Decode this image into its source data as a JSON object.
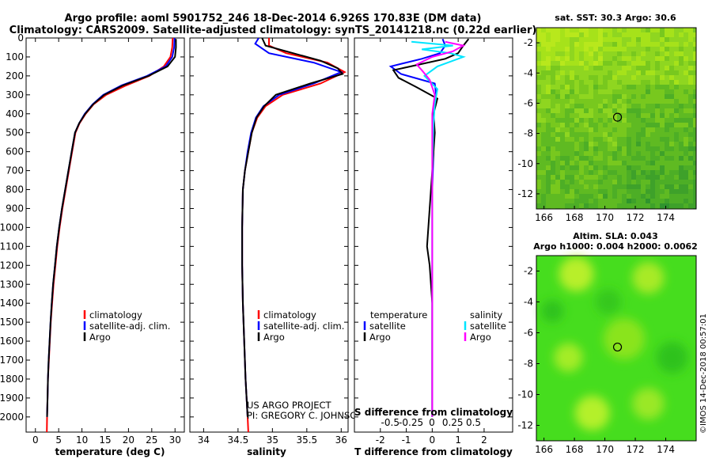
{
  "header": {
    "line1": "Argo profile: aoml 5901752_246 18-Dec-2014 6.926S 170.83E (DM data)",
    "line2": "Climatology: CARS2009. Satellite-adjusted climatology: synTS_20141218.nc (0.22d earlier)"
  },
  "colors": {
    "climatology": "#ff0000",
    "satellite": "#0000ff",
    "argo": "#000000",
    "sal_satellite": "#00e5ff",
    "sal_argo": "#ff00ff"
  },
  "chart_data": [
    {
      "type": "line",
      "name": "temperature",
      "xlabel": "temperature (deg C)",
      "ylabel": "",
      "xlim": [
        -2,
        32
      ],
      "ylim": [
        2080,
        0
      ],
      "xticks": [
        0,
        5,
        10,
        15,
        20,
        25,
        30
      ],
      "xtick_labels": [
        "0",
        "5",
        "10",
        "15",
        "20",
        "25",
        "30"
      ],
      "yticks": [
        0,
        100,
        200,
        300,
        400,
        500,
        600,
        700,
        800,
        900,
        1000,
        1100,
        1200,
        1300,
        1400,
        1500,
        1600,
        1700,
        1800,
        1900,
        2000
      ],
      "ytick_labels": [
        "0",
        "100",
        "200",
        "300",
        "400",
        "500",
        "600",
        "700",
        "800",
        "900",
        "1000",
        "1100",
        "1200",
        "1300",
        "1400",
        "1500",
        "1600",
        "1700",
        "1800",
        "1900",
        "2000"
      ],
      "legend": [
        "climatology",
        "satellite-adj. clim.",
        "Argo"
      ],
      "series": [
        {
          "name": "climatology",
          "color": "#ff0000",
          "points": [
            [
              29.5,
              0
            ],
            [
              29.4,
              50
            ],
            [
              29.0,
              100
            ],
            [
              27.6,
              150
            ],
            [
              24.5,
              200
            ],
            [
              19.5,
              250
            ],
            [
              15.2,
              300
            ],
            [
              12.5,
              350
            ],
            [
              10.8,
              400
            ],
            [
              9.5,
              450
            ],
            [
              8.6,
              500
            ],
            [
              7.9,
              600
            ],
            [
              7.2,
              700
            ],
            [
              6.5,
              800
            ],
            [
              5.8,
              900
            ],
            [
              5.2,
              1000
            ],
            [
              4.7,
              1100
            ],
            [
              4.3,
              1200
            ],
            [
              3.9,
              1300
            ],
            [
              3.6,
              1400
            ],
            [
              3.3,
              1500
            ],
            [
              3.1,
              1600
            ],
            [
              2.9,
              1700
            ],
            [
              2.7,
              1800
            ],
            [
              2.6,
              1900
            ],
            [
              2.5,
              2000
            ],
            [
              2.45,
              2080
            ]
          ]
        },
        {
          "name": "satellite-adj. clim.",
          "color": "#0000ff",
          "points": [
            [
              29.9,
              0
            ],
            [
              29.8,
              50
            ],
            [
              29.4,
              100
            ],
            [
              28.0,
              150
            ],
            [
              24.0,
              200
            ],
            [
              18.5,
              250
            ],
            [
              14.6,
              300
            ],
            [
              12.3,
              350
            ],
            [
              10.6,
              400
            ],
            [
              9.4,
              450
            ],
            [
              8.5,
              500
            ],
            [
              7.8,
              600
            ],
            [
              7.1,
              700
            ],
            [
              6.4,
              800
            ],
            [
              5.7,
              900
            ],
            [
              5.1,
              1000
            ],
            [
              4.6,
              1100
            ],
            [
              4.2,
              1200
            ],
            [
              3.8,
              1300
            ],
            [
              3.5,
              1400
            ],
            [
              3.25,
              1500
            ],
            [
              3.05,
              1600
            ],
            [
              2.85,
              1700
            ],
            [
              2.7,
              1800
            ],
            [
              2.6,
              1900
            ],
            [
              2.5,
              2000
            ]
          ]
        },
        {
          "name": "Argo",
          "color": "#000000",
          "points": [
            [
              30.2,
              5
            ],
            [
              30.2,
              50
            ],
            [
              30.0,
              100
            ],
            [
              28.4,
              150
            ],
            [
              24.3,
              200
            ],
            [
              18.8,
              250
            ],
            [
              14.8,
              300
            ],
            [
              12.4,
              350
            ],
            [
              10.7,
              400
            ],
            [
              9.4,
              450
            ],
            [
              8.5,
              500
            ],
            [
              7.8,
              600
            ],
            [
              7.1,
              700
            ],
            [
              6.4,
              800
            ],
            [
              5.7,
              900
            ],
            [
              5.1,
              1000
            ],
            [
              4.6,
              1100
            ],
            [
              4.2,
              1200
            ],
            [
              3.8,
              1300
            ],
            [
              3.5,
              1400
            ],
            [
              3.25,
              1500
            ],
            [
              3.05,
              1600
            ],
            [
              2.85,
              1700
            ],
            [
              2.7,
              1800
            ],
            [
              2.6,
              1900
            ],
            [
              2.5,
              2000
            ]
          ]
        }
      ]
    },
    {
      "type": "line",
      "name": "salinity",
      "xlabel": "salinity",
      "xlim": [
        33.8,
        36.1
      ],
      "ylim": [
        2080,
        0
      ],
      "xticks": [
        34,
        34.5,
        35,
        35.5,
        36
      ],
      "xtick_labels": [
        "34",
        "34.5",
        "35",
        "35.5",
        "36"
      ],
      "legend": [
        "climatology",
        "satellite-adj. clim.",
        "Argo"
      ],
      "credit": [
        "US ARGO PROJECT",
        "PI: GREGORY C. JOHNSON"
      ],
      "series": [
        {
          "name": "climatology",
          "color": "#ff0000",
          "points": [
            [
              34.95,
              0
            ],
            [
              34.95,
              40
            ],
            [
              35.2,
              80
            ],
            [
              35.8,
              130
            ],
            [
              36.05,
              180
            ],
            [
              35.7,
              240
            ],
            [
              35.15,
              300
            ],
            [
              34.9,
              360
            ],
            [
              34.78,
              420
            ],
            [
              34.7,
              500
            ],
            [
              34.65,
              600
            ],
            [
              34.6,
              700
            ],
            [
              34.57,
              800
            ],
            [
              34.56,
              1000
            ],
            [
              34.56,
              1200
            ],
            [
              34.57,
              1400
            ],
            [
              34.59,
              1600
            ],
            [
              34.61,
              1800
            ],
            [
              34.64,
              2000
            ],
            [
              34.65,
              2080
            ]
          ]
        },
        {
          "name": "satellite-adj. clim.",
          "color": "#0000ff",
          "points": [
            [
              34.8,
              0
            ],
            [
              34.75,
              30
            ],
            [
              34.95,
              80
            ],
            [
              35.6,
              130
            ],
            [
              36.0,
              180
            ],
            [
              35.6,
              240
            ],
            [
              35.1,
              300
            ],
            [
              34.87,
              360
            ],
            [
              34.76,
              420
            ],
            [
              34.69,
              500
            ],
            [
              34.64,
              600
            ],
            [
              34.6,
              700
            ],
            [
              34.57,
              800
            ],
            [
              34.56,
              1000
            ],
            [
              34.56,
              1200
            ],
            [
              34.57,
              1400
            ],
            [
              34.59,
              1600
            ],
            [
              34.61,
              1800
            ],
            [
              34.64,
              2000
            ]
          ]
        },
        {
          "name": "Argo",
          "color": "#000000",
          "points": [
            [
              34.85,
              0
            ],
            [
              34.9,
              40
            ],
            [
              35.3,
              80
            ],
            [
              35.7,
              120
            ],
            [
              35.95,
              160
            ],
            [
              36.02,
              190
            ],
            [
              35.55,
              240
            ],
            [
              35.05,
              300
            ],
            [
              34.88,
              360
            ],
            [
              34.77,
              420
            ],
            [
              34.7,
              500
            ],
            [
              34.65,
              600
            ],
            [
              34.6,
              700
            ],
            [
              34.57,
              800
            ],
            [
              34.56,
              1000
            ],
            [
              34.56,
              1200
            ],
            [
              34.57,
              1400
            ],
            [
              34.59,
              1600
            ],
            [
              34.61,
              1800
            ],
            [
              34.64,
              2000
            ]
          ]
        }
      ]
    },
    {
      "type": "line",
      "name": "differences",
      "xlabel": "T difference from climatology",
      "xlabel2": "S difference from climatology",
      "xlim": [
        -3,
        3.1
      ],
      "ylim": [
        2080,
        0
      ],
      "xticks": [
        -2,
        -1,
        0,
        1,
        2
      ],
      "xtick_labels": [
        "-2",
        "-1",
        "0",
        "1",
        "2"
      ],
      "xticks2": [
        -0.5,
        -0.25,
        0,
        0.25,
        0.5
      ],
      "xtick_labels2": [
        "-0.5",
        "-0.25",
        "0",
        "0.25",
        "0.5"
      ],
      "legend_left_title": "temperature",
      "legend_left": [
        "satellite",
        "Argo"
      ],
      "legend_right_title": "salinity",
      "legend_right": [
        "satellite",
        "Argo"
      ],
      "series": [
        {
          "name": "T satellite",
          "color": "#0000ff",
          "points": [
            [
              0.4,
              5
            ],
            [
              0.5,
              40
            ],
            [
              0.3,
              80
            ],
            [
              -0.4,
              110
            ],
            [
              -1.6,
              150
            ],
            [
              -1.2,
              190
            ],
            [
              0.1,
              240
            ],
            [
              0.15,
              300
            ],
            [
              0.05,
              400
            ],
            [
              0.05,
              600
            ],
            [
              0.0,
              800
            ],
            [
              0.0,
              1000
            ],
            [
              0.0,
              1200
            ],
            [
              0.0,
              1500
            ],
            [
              0.0,
              1800
            ],
            [
              0.0,
              2000
            ]
          ]
        },
        {
          "name": "T Argo",
          "color": "#000000",
          "points": [
            [
              1.4,
              5
            ],
            [
              1.2,
              40
            ],
            [
              1.0,
              80
            ],
            [
              0.5,
              110
            ],
            [
              -0.5,
              140
            ],
            [
              -1.5,
              170
            ],
            [
              -1.3,
              210
            ],
            [
              -0.6,
              260
            ],
            [
              0.2,
              320
            ],
            [
              0.05,
              400
            ],
            [
              0.1,
              500
            ],
            [
              0.0,
              700
            ],
            [
              -0.1,
              900
            ],
            [
              -0.2,
              1100
            ],
            [
              -0.1,
              1200
            ],
            [
              0.0,
              1400
            ],
            [
              0.0,
              1700
            ],
            [
              0.0,
              2000
            ]
          ]
        },
        {
          "name": "S satellite",
          "color": "#00e5ff",
          "points": [
            [
              -0.8,
              20
            ],
            [
              0.8,
              40
            ],
            [
              -0.4,
              60
            ],
            [
              0.7,
              80
            ],
            [
              1.2,
              100
            ],
            [
              0.2,
              150
            ],
            [
              -0.3,
              200
            ],
            [
              0.2,
              270
            ],
            [
              0.1,
              350
            ],
            [
              0.05,
              450
            ],
            [
              0.0,
              700
            ],
            [
              0.0,
              1000
            ],
            [
              0.0,
              1400
            ],
            [
              0.0,
              1700
            ],
            [
              0.0,
              2000
            ]
          ]
        },
        {
          "name": "S Argo",
          "color": "#ff00ff",
          "points": [
            [
              0.5,
              20
            ],
            [
              1.2,
              40
            ],
            [
              0.8,
              70
            ],
            [
              0.0,
              100
            ],
            [
              -0.6,
              140
            ],
            [
              -0.4,
              170
            ],
            [
              -0.1,
              220
            ],
            [
              0.1,
              300
            ],
            [
              0.0,
              400
            ],
            [
              0.0,
              600
            ],
            [
              0.0,
              900
            ],
            [
              0.0,
              1200
            ],
            [
              0.0,
              1500
            ],
            [
              0.0,
              2000
            ]
          ]
        }
      ]
    },
    {
      "type": "heatmap",
      "name": "sst_map",
      "title": "sat. SST: 30.3 Argo: 30.6",
      "xlim": [
        165.5,
        176
      ],
      "ylim": [
        -13,
        -1
      ],
      "xticks": [
        166,
        168,
        170,
        172,
        174
      ],
      "xtick_labels": [
        "166",
        "168",
        "170",
        "172",
        "174"
      ],
      "yticks": [
        -2,
        -4,
        -6,
        -8,
        -10,
        -12
      ],
      "ytick_labels": [
        "-2",
        "-4",
        "-6",
        "-8",
        "-10",
        "-12"
      ],
      "marker": [
        170.83,
        -6.926
      ]
    },
    {
      "type": "heatmap",
      "name": "sla_map",
      "title": "Altim. SLA: 0.043",
      "title2": "Argo h1000: 0.004 h2000: 0.0062",
      "xlim": [
        165.5,
        176
      ],
      "ylim": [
        -13,
        -1
      ],
      "xticks": [
        166,
        168,
        170,
        172,
        174
      ],
      "xtick_labels": [
        "166",
        "168",
        "170",
        "172",
        "174"
      ],
      "yticks": [
        -2,
        -4,
        -6,
        -8,
        -10,
        -12
      ],
      "ytick_labels": [
        "-2",
        "-4",
        "-6",
        "-8",
        "-10",
        "-12"
      ],
      "marker": [
        170.83,
        -6.926
      ]
    }
  ],
  "watermark": "©IMOS 14-Dec-2018 00:57:01"
}
